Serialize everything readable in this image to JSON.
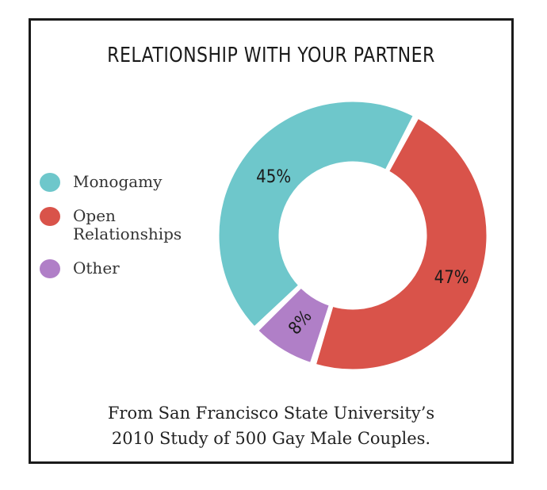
{
  "chart_data": {
    "type": "pie",
    "title": "RELATIONSHIP WITH YOUR PARTNER",
    "categories": [
      "Monogamy",
      "Open Relationships",
      "Other"
    ],
    "values": [
      45,
      47,
      8
    ],
    "data_labels": [
      "45%",
      "47%",
      "8%"
    ],
    "colors": [
      "#6ec7cb",
      "#d9534a",
      "#b07fc7"
    ],
    "legend_position": "left"
  },
  "legend": {
    "items": [
      {
        "label": "Monogamy",
        "color": "#6ec7cb"
      },
      {
        "label": "Open Relationships",
        "color": "#d9534a"
      },
      {
        "label": "Other",
        "color": "#b07fc7"
      }
    ]
  },
  "source": {
    "line1": "From San Francisco State University’s",
    "line2": "2010 Study of 500 Gay Male Couples."
  }
}
